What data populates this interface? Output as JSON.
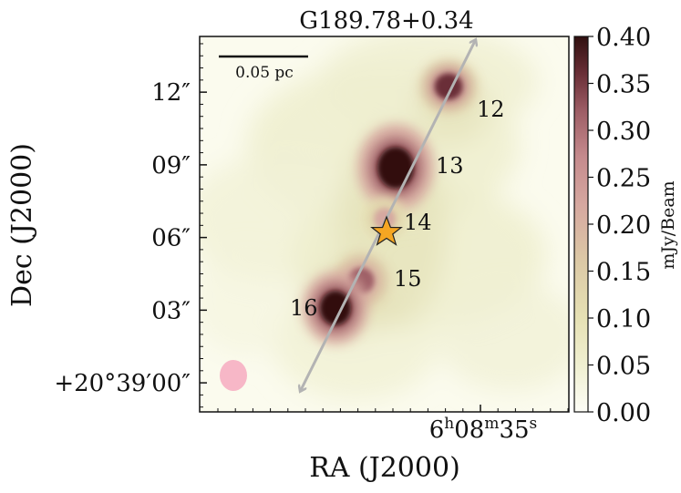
{
  "chart_data": {
    "type": "heatmap",
    "title": "G189.78+0.34",
    "xlabel": "RA (J2000)",
    "ylabel": "Dec (J2000)",
    "x_ticks": [
      {
        "label": "6h08m35s",
        "parts": {
          "h": "6",
          "hs": "h",
          "m": "08",
          "ms": "m",
          "s": "35",
          "ss": "s"
        }
      }
    ],
    "y_ticks": [
      "+20°39′00″",
      "03″",
      "06″",
      "09″",
      "12″"
    ],
    "y_tick_values": [
      0,
      3,
      6,
      9,
      12
    ],
    "ylim": [
      -1.2,
      14.3
    ],
    "colorbar": {
      "label": "mJy/Beam",
      "range": [
        0.0,
        0.4
      ],
      "ticks": [
        "0.00",
        "0.05",
        "0.10",
        "0.15",
        "0.20",
        "0.25",
        "0.30",
        "0.35",
        "0.40"
      ],
      "tick_values": [
        0.0,
        0.05,
        0.1,
        0.15,
        0.2,
        0.25,
        0.3,
        0.35,
        0.4
      ],
      "colormap": [
        "#fdfdf6",
        "#f0f0d2",
        "#e6e1b4",
        "#dcc9a6",
        "#d6a8a0",
        "#c58a8d",
        "#9e5e66",
        "#6a2f37",
        "#301010"
      ]
    },
    "sources": [
      {
        "label": "12",
        "peak": 0.35
      },
      {
        "label": "13",
        "peak": 0.42
      },
      {
        "label": "14",
        "peak": 0.22
      },
      {
        "label": "15",
        "peak": 0.28
      },
      {
        "label": "16",
        "peak": 0.42
      }
    ],
    "scale_bar": {
      "label": "0.05 pc"
    },
    "beam_color": "#f7b7c7",
    "arrow_color": "#b3b3b3",
    "star_color": "#f5a623"
  }
}
